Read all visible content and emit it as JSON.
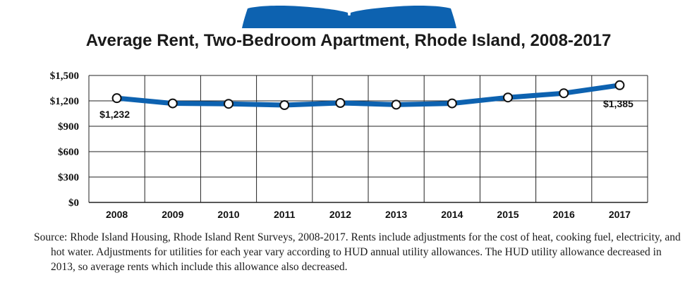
{
  "title": "Average Rent, Two-Bedroom Apartment, Rhode Island, 2008-2017",
  "source_note": "Source: Rhode Island Housing, Rhode Island Rent Surveys, 2008-2017. Rents include adjustments for the cost of heat, cooking fuel, electricity, and hot water. Adjustments for utilities for each year vary according to HUD annual utility allowances. The HUD utility allowance decreased in 2013, so average rents which include this allowance also decreased.",
  "icon": "open-book-icon",
  "colors": {
    "line": "#0d62b0",
    "grid": "#222222",
    "marker_fill": "#ffffff"
  },
  "chart_data": {
    "type": "line",
    "title": "Average Rent, Two-Bedroom Apartment, Rhode Island, 2008-2017",
    "xlabel": "",
    "ylabel": "",
    "categories": [
      "2008",
      "2009",
      "2010",
      "2011",
      "2012",
      "2013",
      "2014",
      "2015",
      "2016",
      "2017"
    ],
    "series": [
      {
        "values": [
          1232,
          1170,
          1165,
          1150,
          1175,
          1155,
          1170,
          1240,
          1290,
          1385
        ]
      }
    ],
    "y_ticks": [
      "$0",
      "$300",
      "$600",
      "$900",
      "$1,200",
      "$1,500"
    ],
    "ylim": [
      0,
      1500
    ],
    "grid": true,
    "data_labels": [
      {
        "index": 0,
        "text": "$1,232"
      },
      {
        "index": 9,
        "text": "$1,385"
      }
    ]
  }
}
